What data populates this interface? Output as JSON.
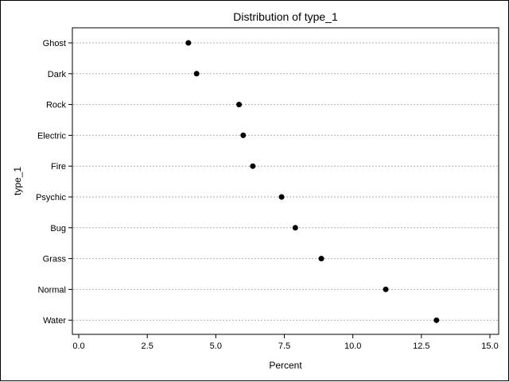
{
  "chart_data": {
    "type": "scatter",
    "orientation": "horizontal-dot-plot",
    "title": "Distribution of type_1",
    "xlabel": "Percent",
    "ylabel": "type_1",
    "xlim": [
      0,
      15
    ],
    "xticks": [
      "0.0",
      "2.5",
      "5.0",
      "7.5",
      "10.0",
      "12.5",
      "15.0"
    ],
    "xtick_values": [
      0,
      2.5,
      5,
      7.5,
      10,
      12.5,
      15
    ],
    "categories": [
      "Ghost",
      "Dark",
      "Rock",
      "Electric",
      "Fire",
      "Psychic",
      "Bug",
      "Grass",
      "Normal",
      "Water"
    ],
    "values": [
      4.0,
      4.3,
      5.85,
      6.0,
      6.35,
      7.4,
      7.9,
      8.85,
      11.2,
      13.05
    ],
    "grid": "horizontal dotted",
    "colors": {
      "marker": "#000000",
      "grid": "#b0b0b0",
      "axis": "#000000"
    }
  }
}
